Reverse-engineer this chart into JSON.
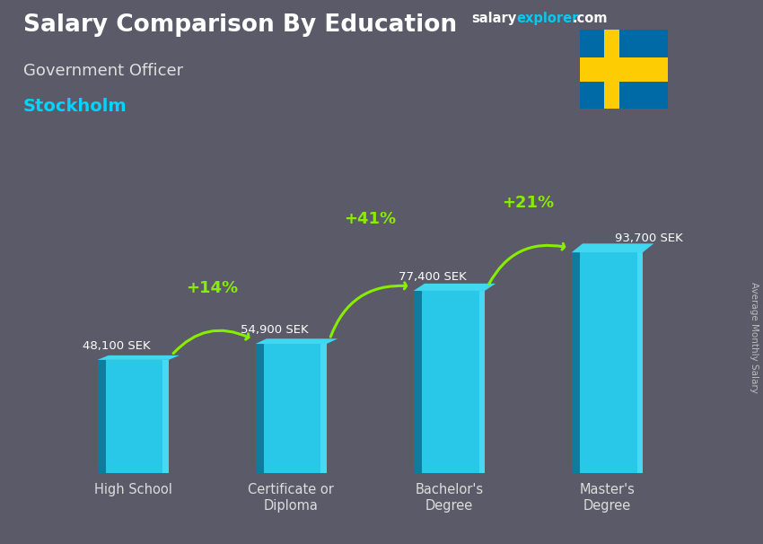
{
  "title": "Salary Comparison By Education",
  "subtitle": "Government Officer",
  "city": "Stockholm",
  "ylabel": "Average Monthly Salary",
  "categories": [
    "High School",
    "Certificate or\nDiploma",
    "Bachelor's\nDegree",
    "Master's\nDegree"
  ],
  "values": [
    48100,
    54900,
    77400,
    93700
  ],
  "labels": [
    "48,100 SEK",
    "54,900 SEK",
    "77,400 SEK",
    "93,700 SEK"
  ],
  "pct_changes": [
    "+14%",
    "+41%",
    "+21%"
  ],
  "bar_color_main": "#29c8e8",
  "bar_color_left": "#0a7090",
  "bar_color_right": "#55e0f8",
  "bar_color_top": "#40d8f0",
  "bg_color": "#5a5a68",
  "title_color": "#ffffff",
  "subtitle_color": "#e0e0e0",
  "city_color": "#00d4ff",
  "label_color": "#ffffff",
  "pct_color": "#88ee00",
  "arrow_color": "#88ee00",
  "ylabel_color": "#bbbbbb",
  "xtick_color": "#dddddd",
  "bar_width": 0.45,
  "ylim": [
    0,
    120000
  ],
  "flag_blue": "#006AA7",
  "flag_yellow": "#FECC02"
}
